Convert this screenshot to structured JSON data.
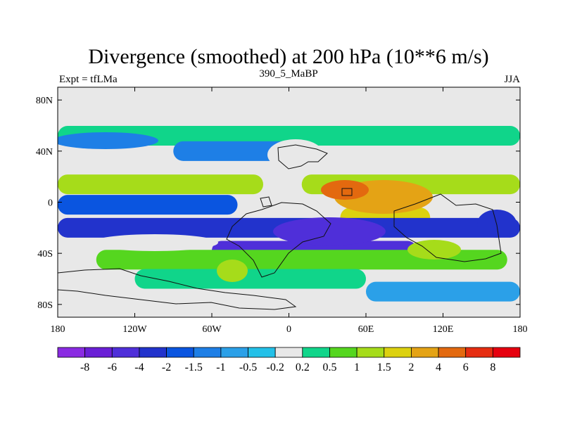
{
  "header": {
    "title": "Divergence (smoothed) at 200 hPa (10**6 m/s)",
    "left_label": "Expt = tfLMa",
    "center_label": "390_5_MaBP",
    "right_label": "JJA"
  },
  "chart_data": {
    "type": "heatmap",
    "title": "Divergence (smoothed) at 200 hPa (10**6 m/s)",
    "xlabel": "",
    "ylabel": "",
    "xlim": [
      -180,
      180
    ],
    "ylim": [
      -90,
      90
    ],
    "x_ticks": [
      {
        "value": -180,
        "label": "180"
      },
      {
        "value": -120,
        "label": "120W"
      },
      {
        "value": -60,
        "label": "60W"
      },
      {
        "value": 0,
        "label": "0"
      },
      {
        "value": 60,
        "label": "60E"
      },
      {
        "value": 120,
        "label": "120E"
      },
      {
        "value": 180,
        "label": "180"
      }
    ],
    "y_ticks": [
      {
        "value": 80,
        "label": "80N"
      },
      {
        "value": 40,
        "label": "40N"
      },
      {
        "value": 0,
        "label": "0"
      },
      {
        "value": -40,
        "label": "40S"
      },
      {
        "value": -80,
        "label": "80S"
      }
    ],
    "colorbar": {
      "labels": [
        "-8",
        "-6",
        "-4",
        "-2",
        "-1.5",
        "-1",
        "-0.5",
        "-0.2",
        "0.2",
        "0.5",
        "1",
        "1.5",
        "2",
        "4",
        "6",
        "8"
      ],
      "colors": [
        "#8a2be2",
        "#6a1fd6",
        "#4f2fd9",
        "#2233cc",
        "#0a55e0",
        "#1e7fe6",
        "#2ba0e8",
        "#23c0e8",
        "#e8e8e8",
        "#10d58a",
        "#55d61f",
        "#a6dc1a",
        "#dcd10f",
        "#e4a315",
        "#e3690f",
        "#e62d11",
        "#e6000f"
      ]
    },
    "background_color": "#e8e8e8",
    "bands": [
      {
        "lat": 52,
        "value": 0.5,
        "lon_ranges": [
          [
            -180,
            180
          ]
        ]
      },
      {
        "lat": 40,
        "value": -1,
        "lon_ranges": [
          [
            -90,
            20
          ]
        ]
      },
      {
        "lat": 14,
        "value": 1.5,
        "lon_ranges": [
          [
            -180,
            -20
          ],
          [
            10,
            180
          ]
        ]
      },
      {
        "lat": 5,
        "value": 4,
        "lon_ranges": [
          [
            40,
            100
          ]
        ]
      },
      {
        "lat": -2,
        "value": -1.5,
        "lon_ranges": [
          [
            -180,
            -40
          ]
        ]
      },
      {
        "lat": -12,
        "value": 2,
        "lon_ranges": [
          [
            40,
            110
          ]
        ]
      },
      {
        "lat": -20,
        "value": -2,
        "lon_ranges": [
          [
            -180,
            180
          ]
        ]
      },
      {
        "lat": -38,
        "value": -4,
        "lon_ranges": [
          [
            -60,
            100
          ]
        ]
      },
      {
        "lat": -45,
        "value": 1,
        "lon_ranges": [
          [
            -150,
            170
          ]
        ]
      },
      {
        "lat": -60,
        "value": 0.5,
        "lon_ranges": [
          [
            -120,
            60
          ]
        ]
      },
      {
        "lat": -70,
        "value": -0.5,
        "lon_ranges": [
          [
            60,
            180
          ]
        ]
      }
    ]
  }
}
